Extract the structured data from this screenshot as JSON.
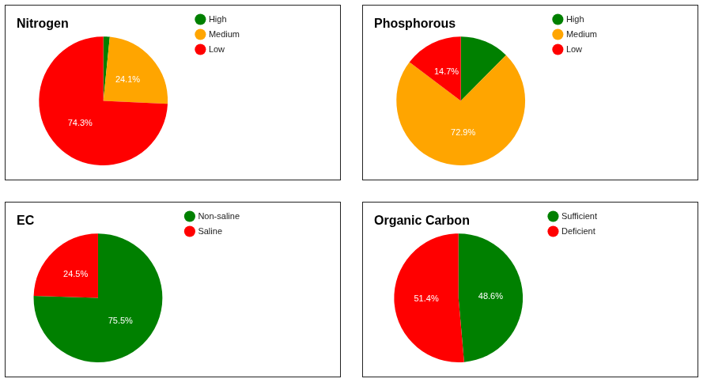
{
  "chart_data": [
    {
      "type": "pie",
      "title": "Nitrogen",
      "categories": [
        "High",
        "Medium",
        "Low"
      ],
      "values": [
        1.6,
        24.1,
        74.3
      ],
      "value_labels": [
        null,
        "24.1%",
        "74.3%"
      ],
      "colors": [
        "#008000",
        "#ffa500",
        "#ff0000"
      ],
      "data_labels": true,
      "legend": "top right"
    },
    {
      "type": "pie",
      "title": "Phosphorous",
      "categories": [
        "High",
        "Medium",
        "Low"
      ],
      "values": [
        12.4,
        72.9,
        14.7
      ],
      "value_labels": [
        null,
        "72.9%",
        "14.7%"
      ],
      "colors": [
        "#008000",
        "#ffa500",
        "#ff0000"
      ],
      "data_labels": true,
      "legend": "top right"
    },
    {
      "type": "pie",
      "title": "EC",
      "categories": [
        "Non-saline",
        "Saline"
      ],
      "values": [
        75.5,
        24.5
      ],
      "value_labels": [
        "75.5%",
        "24.5%"
      ],
      "colors": [
        "#008000",
        "#ff0000"
      ],
      "data_labels": true,
      "legend": "top right"
    },
    {
      "type": "pie",
      "title": "Organic Carbon",
      "categories": [
        "Sufficient",
        "Deficient"
      ],
      "values": [
        48.6,
        51.4
      ],
      "value_labels": [
        "48.6%",
        "51.4%"
      ],
      "colors": [
        "#008000",
        "#ff0000"
      ],
      "data_labels": true,
      "legend": "top right"
    }
  ]
}
